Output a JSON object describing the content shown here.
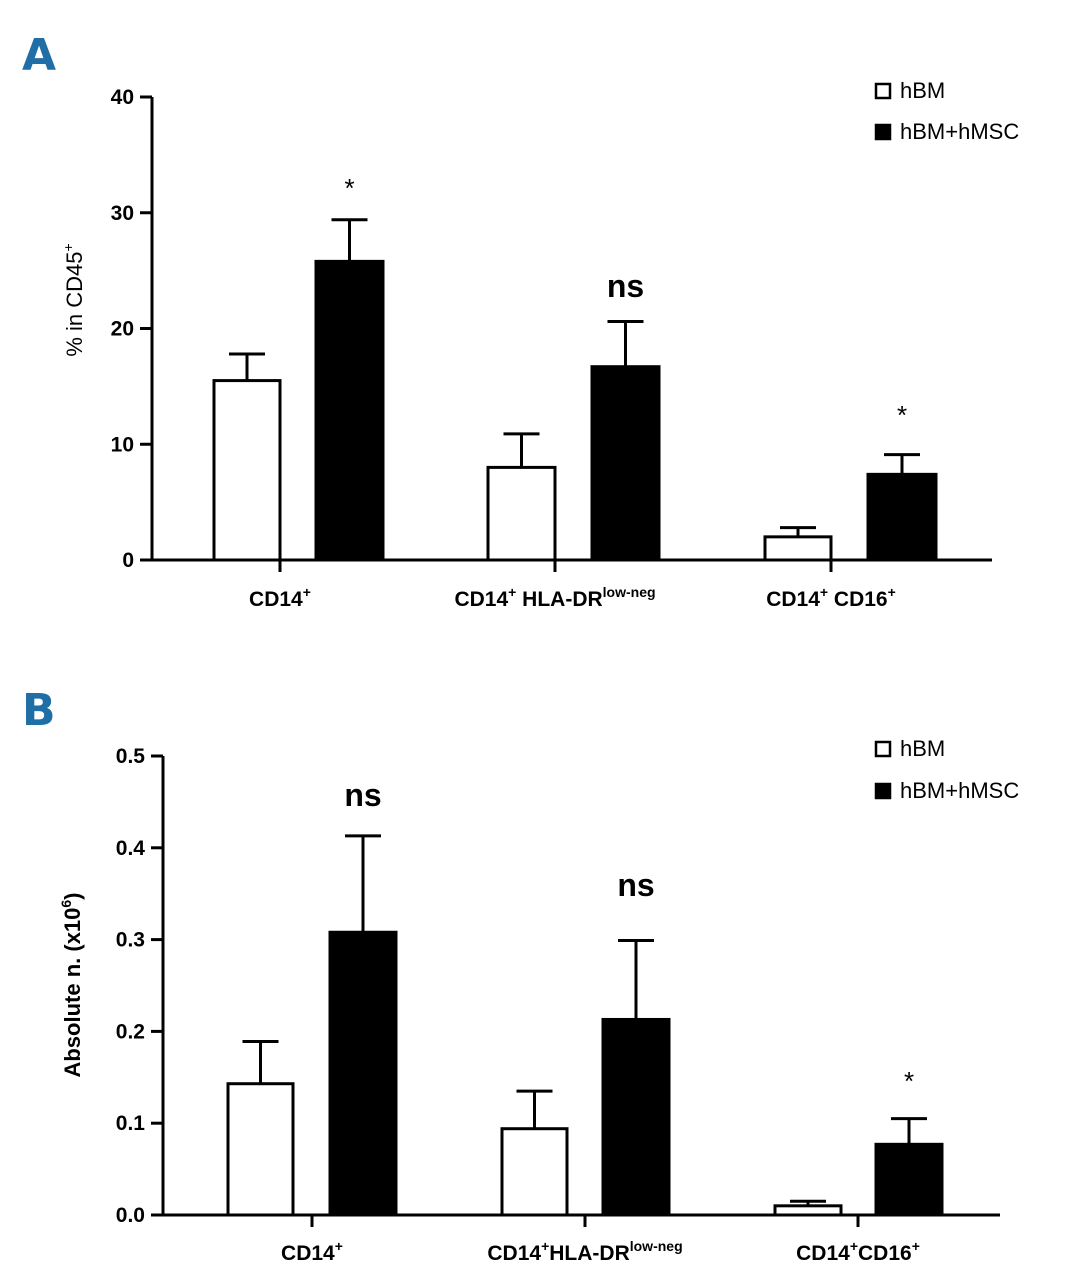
{
  "chart_data": [
    {
      "panel": "A",
      "type": "bar",
      "ylabel_main": "% in CD45",
      "ylabel_sup": "+",
      "ylim": [
        0,
        40
      ],
      "yticks": [
        "0",
        "10",
        "20",
        "30",
        "40"
      ],
      "ytick_values": [
        0,
        10,
        20,
        30,
        40
      ],
      "categories": [
        {
          "main": "CD14",
          "sup": "+",
          "main2": "",
          "sup2": ""
        },
        {
          "main": "CD14",
          "sup": "+",
          "main2": " HLA-DR",
          "sup2": "low-neg"
        },
        {
          "main": "CD14",
          "sup": "+",
          "main2": " CD16",
          "sup2": "+"
        }
      ],
      "series": [
        {
          "name": "hBM",
          "fill": "#ffffff",
          "values": [
            15.5,
            8.0,
            2.0
          ],
          "errors": [
            2.3,
            2.9,
            0.8
          ]
        },
        {
          "name": "hBM+hMSC",
          "fill": "#000000",
          "values": [
            25.8,
            16.7,
            7.4
          ],
          "errors": [
            3.6,
            3.9,
            1.7
          ]
        }
      ],
      "significance": [
        "*",
        "ns",
        "*"
      ]
    },
    {
      "panel": "B",
      "type": "bar",
      "ylabel_main": "Absolute n. (x10",
      "ylabel_sup": "6",
      "ylabel_end": ")",
      "ylim": [
        0,
        0.5
      ],
      "yticks": [
        "0.0",
        "0.1",
        "0.2",
        "0.3",
        "0.4",
        "0.5"
      ],
      "ytick_values": [
        0,
        0.1,
        0.2,
        0.3,
        0.4,
        0.5
      ],
      "categories": [
        {
          "main": "CD14",
          "sup": "+",
          "main2": "",
          "sup2": ""
        },
        {
          "main": "CD14",
          "sup": "+",
          "main2": "HLA-DR",
          "sup2": "low-neg"
        },
        {
          "main": "CD14",
          "sup": "+",
          "main2": "CD16",
          "sup2": "+"
        }
      ],
      "series": [
        {
          "name": "hBM",
          "fill": "#ffffff",
          "values": [
            0.143,
            0.094,
            0.01
          ],
          "errors": [
            0.046,
            0.041,
            0.005
          ]
        },
        {
          "name": "hBM+hMSC",
          "fill": "#000000",
          "values": [
            0.308,
            0.213,
            0.077
          ],
          "errors": [
            0.105,
            0.086,
            0.028
          ]
        }
      ],
      "significance": [
        "ns",
        "ns",
        "*"
      ]
    }
  ]
}
